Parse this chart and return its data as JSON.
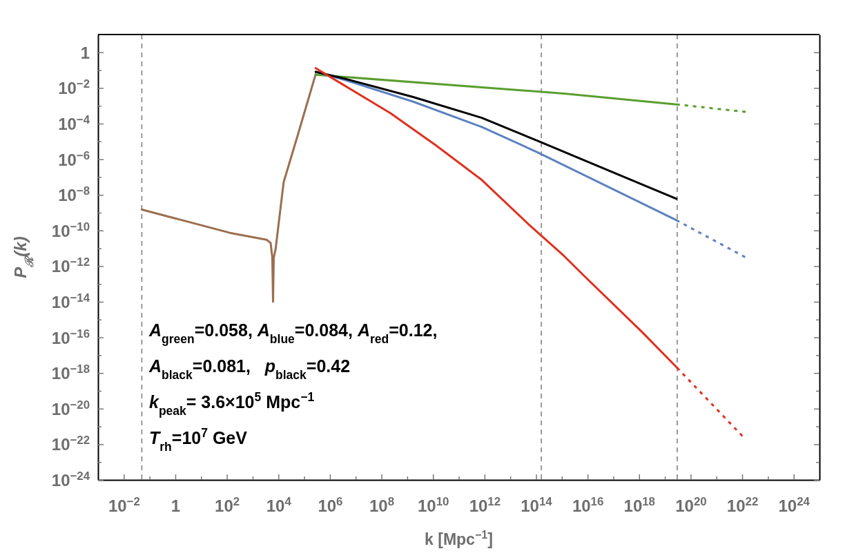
{
  "chart_data": {
    "type": "line",
    "xlabel": "k [Mpc$^{−1}$]",
    "ylabel": "P$_{ℛ}$(k)",
    "log": "xy",
    "grid": false,
    "marker": "none",
    "xlim": [
      0.001,
      1e+25
    ],
    "ylim": [
      1e-24,
      10
    ],
    "xticks": [
      {
        "value": 0.01,
        "label": "10$^{−2}$"
      },
      {
        "value": 0.1,
        "label": null
      },
      {
        "value": 1,
        "label": "1"
      },
      {
        "value": 10,
        "label": null
      },
      {
        "value": 100.0,
        "label": "10$^{2}$"
      },
      {
        "value": 1000.0,
        "label": null
      },
      {
        "value": 10000.0,
        "label": "10$^{4}$"
      },
      {
        "value": 100000.0,
        "label": null
      },
      {
        "value": 1000000.0,
        "label": "10$^{6}$"
      },
      {
        "value": 10000000.0,
        "label": null
      },
      {
        "value": 100000000.0,
        "label": "10$^{8}$"
      },
      {
        "value": 1000000000.0,
        "label": null
      },
      {
        "value": 10000000000.0,
        "label": "10$^{10}$"
      },
      {
        "value": 100000000000.0,
        "label": null
      },
      {
        "value": 1000000000000.0,
        "label": "10$^{12}$"
      },
      {
        "value": 10000000000000.0,
        "label": null
      },
      {
        "value": 100000000000000.0,
        "label": "10$^{14}$"
      },
      {
        "value": 1000000000000000.0,
        "label": null
      },
      {
        "value": 1e+16,
        "label": "10$^{16}$"
      },
      {
        "value": 1e+17,
        "label": null
      },
      {
        "value": 1e+18,
        "label": "10$^{18}$"
      },
      {
        "value": 1e+19,
        "label": null
      },
      {
        "value": 1e+20,
        "label": "10$^{20}$"
      },
      {
        "value": 1e+21,
        "label": null
      },
      {
        "value": 1e+22,
        "label": "10$^{22}$"
      },
      {
        "value": 1e+23,
        "label": null
      },
      {
        "value": 1e+24,
        "label": "10$^{24}$"
      }
    ],
    "yticks": [
      {
        "value": 1e-24,
        "label": "10$^{−24}$"
      },
      {
        "value": 1e-23,
        "label": null
      },
      {
        "value": 1e-22,
        "label": "10$^{−22}$"
      },
      {
        "value": 1e-21,
        "label": null
      },
      {
        "value": 1e-20,
        "label": "10$^{−20}$"
      },
      {
        "value": 1e-19,
        "label": null
      },
      {
        "value": 1e-18,
        "label": "10$^{−18}$"
      },
      {
        "value": 1e-17,
        "label": null
      },
      {
        "value": 1e-16,
        "label": "10$^{−16}$"
      },
      {
        "value": 1e-15,
        "label": null
      },
      {
        "value": 1e-14,
        "label": "10$^{−14}$"
      },
      {
        "value": 1e-13,
        "label": null
      },
      {
        "value": 1e-12,
        "label": "10$^{−12}$"
      },
      {
        "value": 1e-11,
        "label": null
      },
      {
        "value": 1e-10,
        "label": "10$^{−10}$"
      },
      {
        "value": 1e-09,
        "label": null
      },
      {
        "value": 1e-08,
        "label": "10$^{−8}$"
      },
      {
        "value": 1e-07,
        "label": null
      },
      {
        "value": 1e-06,
        "label": "10$^{−6}$"
      },
      {
        "value": 1e-05,
        "label": null
      },
      {
        "value": 0.0001,
        "label": "10$^{−4}$"
      },
      {
        "value": 0.001,
        "label": null
      },
      {
        "value": 0.01,
        "label": "10$^{−2}$"
      },
      {
        "value": 0.1,
        "label": null
      },
      {
        "value": 1,
        "label": "1"
      }
    ],
    "series": [
      {
        "color": "#9a6e4f",
        "line_style": "solid",
        "x": [
          0.05,
          130,
          3500,
          5000,
          5800,
          6200,
          6600,
          7800,
          16000,
          59000,
          280000
        ],
        "values": [
          1.5e-09,
          7.4e-11,
          3e-11,
          2e-11,
          3e-12,
          1e-14,
          3e-12,
          9.3e-12,
          5.2e-08,
          2.8e-05,
          0.06
        ]
      },
      {
        "color": "#5a9e2f",
        "line_style": "solid",
        "x": [
          280000,
          1200000000000000.0,
          2.8e+19
        ],
        "values": [
          0.055,
          0.0049,
          0.0012
        ]
      },
      {
        "color": "#5a9e2f",
        "line_style": "dotted",
        "x": [
          2.8e+19,
          1.4e+22
        ],
        "values": [
          0.0012,
          0.00045
        ]
      },
      {
        "color": "#5b82c0",
        "line_style": "solid",
        "x": [
          280000,
          3600000.0,
          1700000000.0,
          780000000000.0,
          110000000000000.0,
          2.8e+19
        ],
        "values": [
          0.081,
          0.029,
          0.0017,
          6.5e-05,
          2.5e-06,
          3.8e-10
        ]
      },
      {
        "color": "#5b82c0",
        "line_style": "dotted",
        "x": [
          2.8e+19,
          1.3e+22
        ],
        "values": [
          3.8e-10,
          3.2e-12
        ]
      },
      {
        "color": "#000000",
        "line_style": "solid",
        "x": [
          280000,
          3600000.0,
          1700000000.0,
          780000000000.0,
          110000000000000.0,
          2.8e+19
        ],
        "values": [
          0.081,
          0.034,
          0.0031,
          0.00021,
          1.1e-05,
          6e-09
        ]
      },
      {
        "color": "#e0301e",
        "line_style": "solid",
        "x": [
          280000,
          3600000.0,
          220000000.0,
          13000000000.0,
          780000000000.0,
          47000000000000.0,
          1200000000000000.0,
          7800000000000000.0,
          1.3e+18,
          2.95e+19
        ],
        "values": [
          0.13,
          0.014,
          0.00039,
          6e-06,
          6.9e-08,
          2.5e-10,
          3.8e-12,
          2.6e-13,
          2e-16,
          2e-18
        ]
      },
      {
        "color": "#e0301e",
        "line_style": "dotted",
        "x": [
          2.95e+19,
          1.3e+22
        ],
        "values": [
          2e-18,
          2e-22
        ]
      }
    ],
    "ref_lines": [
      {
        "axis": "x",
        "value": 0.05,
        "color": "#808080",
        "line_style": "dashed"
      },
      {
        "axis": "x",
        "value": 160000000000000.0,
        "color": "#808080",
        "line_style": "dashed"
      },
      {
        "axis": "x",
        "value": 3e+19,
        "color": "#808080",
        "line_style": "dashed"
      }
    ],
    "annotations": [
      "A$_{green}$=0.058, A$_{blue}$=0.084, A$_{red}$=0.12,",
      "A$_{black}$=0.081,   p$_{black}$=0.42",
      "k$_{peak}$= 3.6×10$^{5}$ Mpc$^{−1}$",
      "T$_{rh}$=10$^{7}$ GeV"
    ]
  }
}
